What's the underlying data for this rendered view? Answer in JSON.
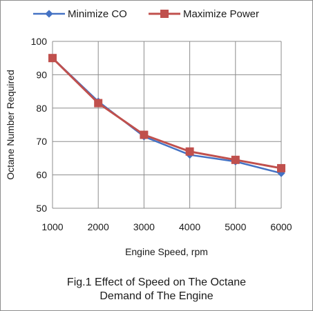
{
  "chart_data": {
    "type": "line",
    "title": "",
    "xlabel": "Engine Speed, rpm",
    "ylabel": "Octane Number Required",
    "x": [
      1000,
      2000,
      3000,
      4000,
      5000,
      6000
    ],
    "xlim": [
      1000,
      6000
    ],
    "ylim": [
      50,
      100
    ],
    "x_ticks": [
      "1000",
      "2000",
      "3000",
      "4000",
      "5000",
      "6000"
    ],
    "y_ticks": [
      "50",
      "60",
      "70",
      "80",
      "90",
      "100"
    ],
    "grid": true,
    "legend_position": "top",
    "series": [
      {
        "name": "Minimize CO",
        "values": [
          95,
          82,
          71.5,
          66,
          64,
          60.5
        ],
        "color": "#4472c4",
        "marker": "diamond"
      },
      {
        "name": "Maximize Power",
        "values": [
          95,
          81.5,
          72,
          67,
          64.5,
          62
        ],
        "color": "#c0504d",
        "marker": "square"
      }
    ]
  },
  "caption": {
    "line1": "Fig.1 Effect of Speed on The Octane",
    "line2": "Demand of The Engine"
  }
}
